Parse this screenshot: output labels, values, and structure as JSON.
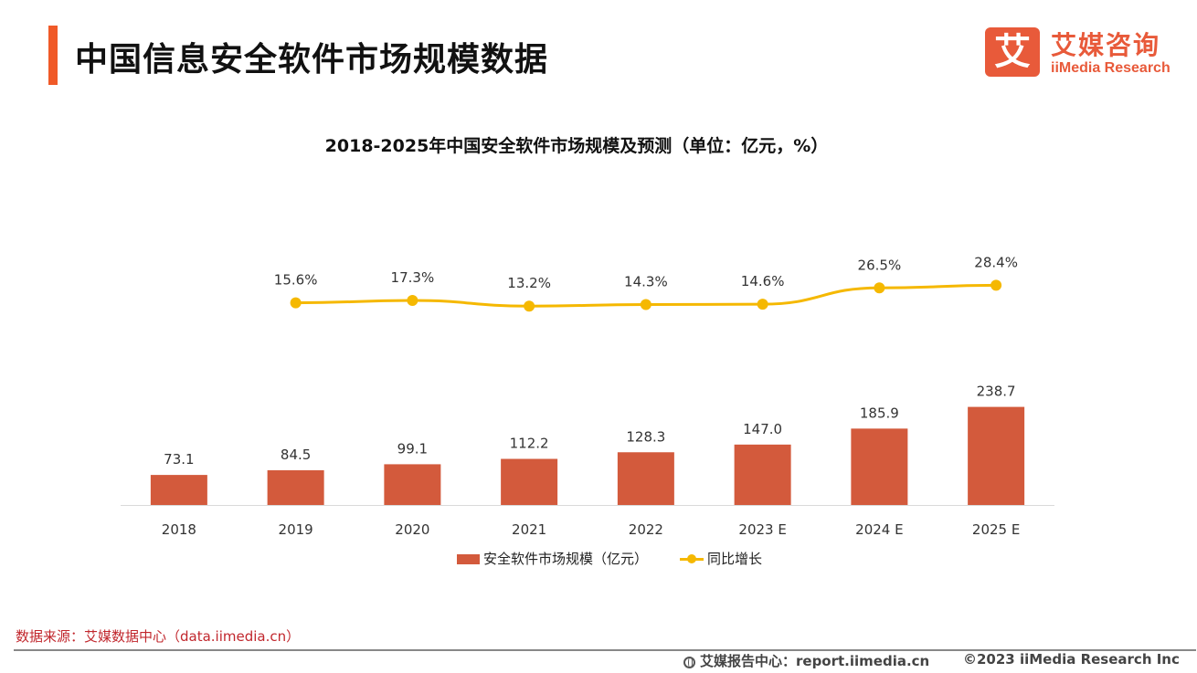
{
  "header": {
    "title": "中国信息安全软件市场规模数据",
    "logo_mark": "艾",
    "logo_cn": "艾媒咨询",
    "logo_en": "iiMedia Research"
  },
  "chart_data": {
    "type": "bar",
    "title": "2018-2025年中国安全软件市场规模及预测（单位：亿元，%）",
    "categories": [
      "2018",
      "2019",
      "2020",
      "2021",
      "2022",
      "2023 E",
      "2024 E",
      "2025 E"
    ],
    "series": [
      {
        "name": "安全软件市场规模（亿元）",
        "type": "bar",
        "values": [
          73.1,
          84.5,
          99.1,
          112.2,
          128.3,
          147.0,
          185.9,
          238.7
        ],
        "labels": [
          "73.1",
          "84.5",
          "99.1",
          "112.2",
          "128.3",
          "147.0",
          "185.9",
          "238.7"
        ],
        "color": "#d35a3c"
      },
      {
        "name": "同比增长",
        "type": "line",
        "values": [
          null,
          15.6,
          17.3,
          13.2,
          14.3,
          14.6,
          26.5,
          28.4
        ],
        "labels": [
          "",
          "15.6%",
          "17.3%",
          "13.2%",
          "14.3%",
          "14.6%",
          "26.5%",
          "28.4%"
        ],
        "color": "#f5b800"
      }
    ],
    "legend": "bottom-center",
    "grid": false
  },
  "footer": {
    "source": "数据来源：艾媒数据中心（data.iimedia.cn）",
    "report_center": "艾媒报告中心：report.iimedia.cn",
    "copyright": "©2023  iiMedia Research  Inc"
  }
}
